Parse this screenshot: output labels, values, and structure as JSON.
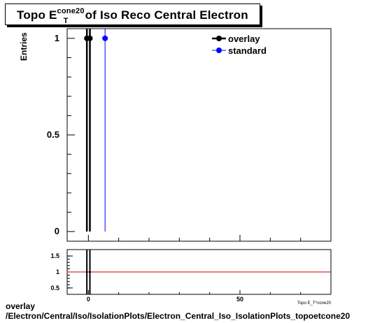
{
  "title": {
    "prefix": "Topo E",
    "sub": "T",
    "sup": "cone20",
    "suffix": "of Iso Reco Central  Electron"
  },
  "ylabel": "Entries",
  "xlabel": "Topo E_T^cone20",
  "footer": {
    "line1": "overlay",
    "line2": "/Electron/Central/Iso/IsolationPlots/Electron_Central_Iso_IsolationPlots_topoetcone20"
  },
  "colors": {
    "overlay": "#000000",
    "standard": "#0000ff",
    "ratio_line": "#cc0000"
  },
  "chart_data": [
    {
      "type": "scatter",
      "xlim": [
        -7,
        80
      ],
      "ylim": [
        -0.05,
        1.05
      ],
      "x_ticks": [
        0,
        50
      ],
      "y_ticks": [
        0,
        0.5,
        1
      ],
      "y_tick_labels": [
        "0",
        "0.5",
        "1"
      ],
      "legend_position": "top-right",
      "series": [
        {
          "name": "overlay",
          "color": "#000000",
          "points": [
            {
              "x": -0.5,
              "y": 1
            },
            {
              "x": 0.5,
              "y": 1
            }
          ]
        },
        {
          "name": "standard",
          "color": "#0000ff",
          "points": [
            {
              "x": 5.5,
              "y": 1
            }
          ]
        }
      ]
    },
    {
      "type": "line",
      "xlim": [
        -7,
        80
      ],
      "ylim": [
        0.3,
        1.7
      ],
      "x_ticks": [
        0,
        50
      ],
      "x_tick_labels": [
        "0",
        "50"
      ],
      "y_ticks": [
        0.5,
        1,
        1.5
      ],
      "y_tick_labels": [
        "0.5",
        "1",
        "1.5"
      ],
      "reference_line": 1,
      "series": [
        {
          "name": "overlay/standard",
          "color": "#000000",
          "points": [
            {
              "x": -0.5,
              "y": 1
            },
            {
              "x": 0.5,
              "y": 1
            }
          ]
        }
      ]
    }
  ]
}
